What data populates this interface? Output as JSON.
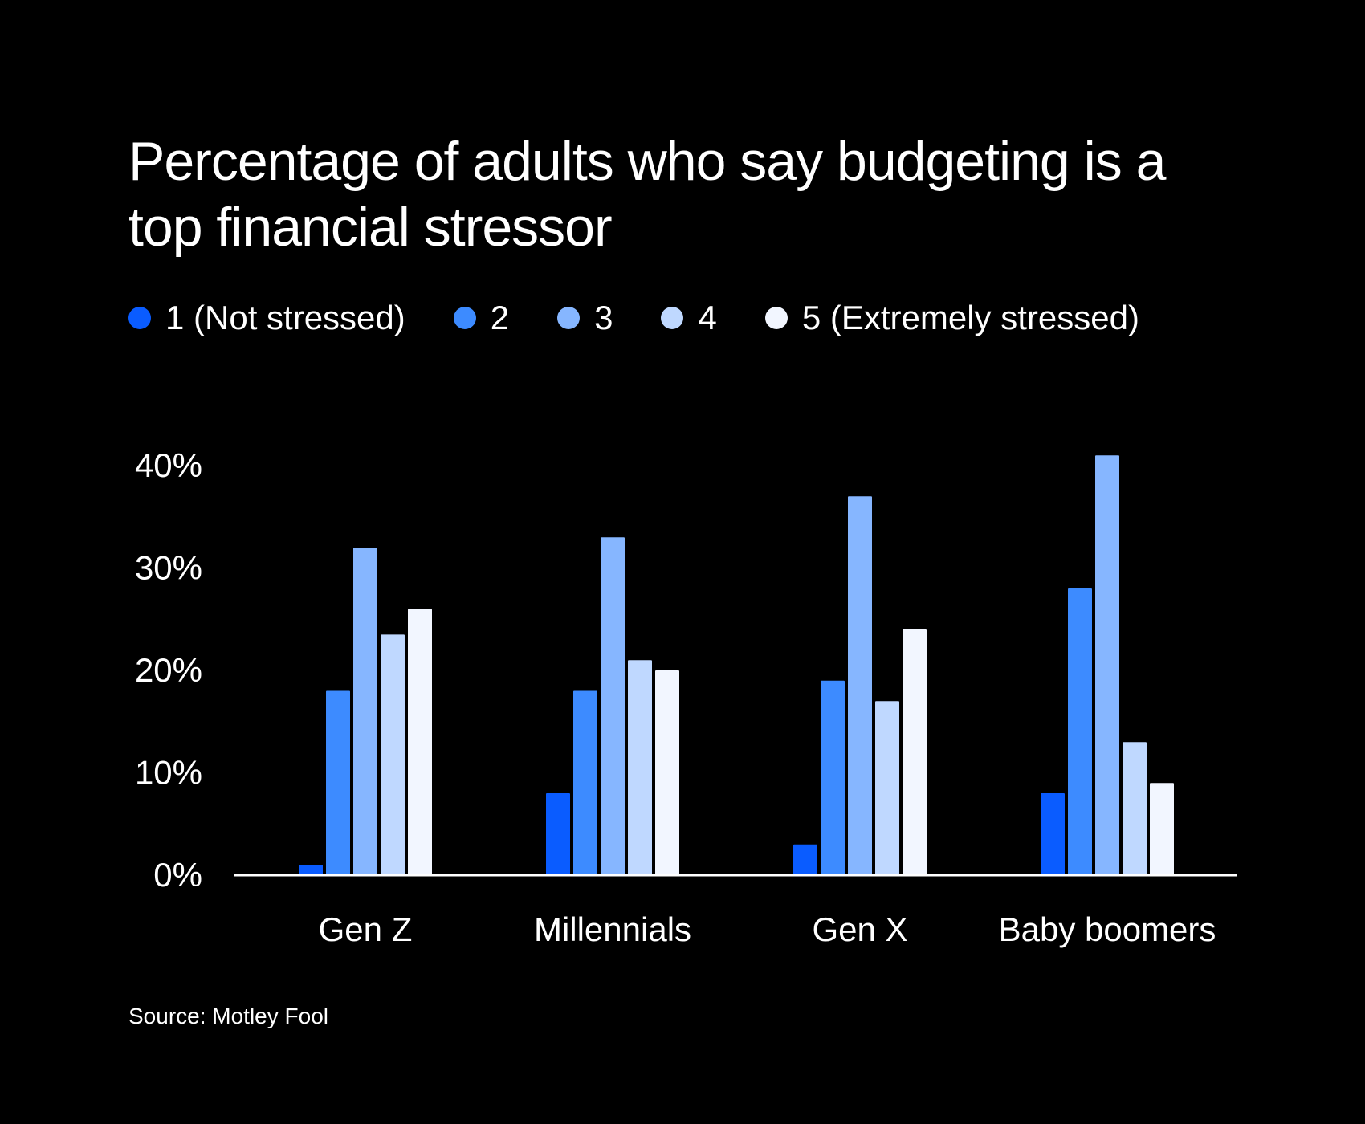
{
  "colors": {
    "background": "#000000",
    "text": "#ffffff",
    "baseline": "#ffffff",
    "series": [
      "#0a5cff",
      "#3d8bff",
      "#86b6ff",
      "#bfd8ff",
      "#f2f6ff"
    ]
  },
  "chart_data": {
    "type": "bar",
    "title": "Percentage of adults who say budgeting is a top financial stressor",
    "xlabel": "",
    "ylabel": "",
    "ylim": [
      0,
      40
    ],
    "yticks": [
      {
        "value": 0,
        "label": "0%"
      },
      {
        "value": 10,
        "label": "10%"
      },
      {
        "value": 20,
        "label": "20%"
      },
      {
        "value": 30,
        "label": "30%"
      },
      {
        "value": 40,
        "label": "40%"
      }
    ],
    "categories": [
      "Gen Z",
      "Millennials",
      "Gen X",
      "Baby boomers"
    ],
    "series": [
      {
        "name": "1 (Not stressed)",
        "values": [
          1,
          8,
          3,
          8
        ]
      },
      {
        "name": "2",
        "values": [
          18,
          18,
          19,
          28
        ]
      },
      {
        "name": "3",
        "values": [
          32,
          33,
          37,
          41
        ]
      },
      {
        "name": "4",
        "values": [
          23.5,
          21,
          17,
          13
        ]
      },
      {
        "name": "5 (Extremely stressed)",
        "values": [
          26,
          20,
          24,
          9
        ]
      }
    ],
    "legend_position": "top-left",
    "grid": false,
    "source": "Source: Motley Fool"
  }
}
